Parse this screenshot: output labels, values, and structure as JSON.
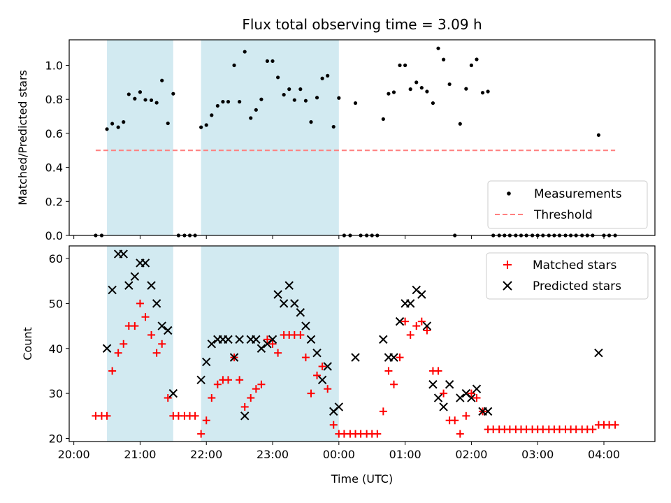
{
  "chart_data": [
    {
      "type": "scatter",
      "title": "Flux total observing time = 3.09 h",
      "xlabel": "",
      "ylabel": "Matched/Predicted stars",
      "xlim_hours": [
        19.93,
        28.77
      ],
      "ylim": [
        0,
        1.15
      ],
      "yticks": [
        0.0,
        0.2,
        0.4,
        0.6,
        0.8,
        1.0
      ],
      "ytick_labels": [
        "0.0",
        "0.2",
        "0.4",
        "0.6",
        "0.8",
        "1.0"
      ],
      "shaded_intervals_hours": [
        [
          20.5,
          21.5
        ],
        [
          21.92,
          24.0
        ]
      ],
      "shade_color": "#add8e6",
      "legend_position": "lower-right",
      "series": [
        {
          "name": "Measurements",
          "marker": "dot",
          "color": "#000000",
          "x_hours": [
            20.33,
            20.42,
            20.5,
            20.58,
            20.67,
            20.75,
            20.83,
            20.92,
            21.0,
            21.08,
            21.17,
            21.25,
            21.33,
            21.42,
            21.5,
            21.58,
            21.67,
            21.75,
            21.83,
            21.92,
            22.0,
            22.08,
            22.17,
            22.25,
            22.33,
            22.42,
            22.5,
            22.58,
            22.67,
            22.75,
            22.83,
            22.92,
            23.0,
            23.08,
            23.17,
            23.25,
            23.33,
            23.42,
            23.5,
            23.58,
            23.67,
            23.75,
            23.83,
            23.92,
            24.0,
            24.08,
            24.17,
            24.25,
            24.33,
            24.42,
            24.5,
            24.58,
            24.67,
            24.75,
            24.83,
            24.92,
            25.0,
            25.08,
            25.17,
            25.25,
            25.33,
            25.42,
            25.5,
            25.58,
            25.67,
            25.75,
            25.83,
            25.92,
            26.0,
            26.08,
            26.17,
            26.25,
            26.33,
            26.42,
            26.5,
            26.58,
            26.67,
            26.75,
            26.83,
            26.92,
            27.0,
            27.08,
            27.17,
            27.25,
            27.33,
            27.42,
            27.5,
            27.58,
            27.67,
            27.75,
            27.83,
            27.92,
            28.0,
            28.08,
            28.17
          ],
          "y": [
            0.0,
            0.0,
            0.625,
            0.657,
            0.636,
            0.667,
            0.83,
            0.804,
            0.843,
            0.797,
            0.795,
            0.78,
            0.911,
            0.659,
            0.833,
            0.0,
            0.0,
            0.0,
            0.0,
            0.636,
            0.649,
            0.707,
            0.762,
            0.786,
            0.786,
            1.0,
            0.786,
            1.08,
            0.69,
            0.738,
            0.8,
            1.025,
            1.025,
            0.929,
            0.827,
            0.86,
            0.796,
            0.86,
            0.792,
            0.667,
            0.81,
            0.923,
            0.939,
            0.639,
            0.808,
            0.0,
            0.0,
            0.778,
            0.0,
            0.0,
            0.0,
            0.0,
            0.684,
            0.833,
            0.842,
            1.0,
            1.0,
            0.86,
            0.9,
            0.868,
            0.846,
            0.778,
            1.1,
            1.034,
            0.889,
            0.0,
            0.656,
            0.862,
            1.0,
            1.035,
            0.839,
            0.846,
            0.0,
            0.0,
            0.0,
            0.0,
            0.0,
            0.0,
            0.0,
            0.0,
            0.0,
            0.0,
            0.0,
            0.0,
            0.0,
            0.0,
            0.0,
            0.0,
            0.0,
            0.0,
            0.0,
            0.59,
            0.0,
            0.0,
            0.0
          ]
        },
        {
          "name": "Threshold",
          "marker": "dashed-line",
          "color": "#ff7f7f",
          "x_hours": [
            20.33,
            28.17
          ],
          "y": [
            0.5,
            0.5
          ]
        }
      ]
    },
    {
      "type": "scatter",
      "title": "",
      "xlabel": "Time (UTC)",
      "ylabel": "Count",
      "xlim_hours": [
        19.93,
        28.77
      ],
      "ylim": [
        19.3,
        62.8
      ],
      "yticks": [
        20,
        30,
        40,
        50,
        60
      ],
      "ytick_labels": [
        "20",
        "30",
        "40",
        "50",
        "60"
      ],
      "xticks_hours": [
        20,
        21,
        22,
        23,
        24,
        25,
        26,
        27,
        28
      ],
      "xtick_labels": [
        "20:00",
        "21:00",
        "22:00",
        "23:00",
        "00:00",
        "01:00",
        "02:00",
        "03:00",
        "04:00"
      ],
      "shaded_intervals_hours": [
        [
          20.5,
          21.5
        ],
        [
          21.92,
          24.0
        ]
      ],
      "shade_color": "#add8e6",
      "legend_position": "top-right",
      "series": [
        {
          "name": "Matched stars",
          "marker": "plus",
          "color": "#ff0000",
          "x_hours": [
            20.33,
            20.42,
            20.5,
            20.58,
            20.67,
            20.75,
            20.83,
            20.92,
            21.0,
            21.08,
            21.17,
            21.25,
            21.33,
            21.42,
            21.5,
            21.58,
            21.67,
            21.75,
            21.83,
            21.92,
            22.0,
            22.08,
            22.17,
            22.25,
            22.33,
            22.42,
            22.5,
            22.58,
            22.67,
            22.75,
            22.83,
            22.92,
            23.0,
            23.08,
            23.17,
            23.25,
            23.33,
            23.42,
            23.5,
            23.58,
            23.67,
            23.75,
            23.83,
            23.92,
            24.0,
            24.08,
            24.17,
            24.25,
            24.33,
            24.42,
            24.5,
            24.58,
            24.67,
            24.75,
            24.83,
            24.92,
            25.0,
            25.08,
            25.17,
            25.25,
            25.33,
            25.42,
            25.5,
            25.58,
            25.67,
            25.75,
            25.83,
            25.92,
            26.0,
            26.08,
            26.17,
            26.25,
            26.33,
            26.42,
            26.5,
            26.58,
            26.67,
            26.75,
            26.83,
            26.92,
            27.0,
            27.08,
            27.17,
            27.25,
            27.33,
            27.42,
            27.5,
            27.58,
            27.67,
            27.75,
            27.83,
            27.92,
            28.0,
            28.08,
            28.17
          ],
          "y": [
            25,
            25,
            25,
            35,
            39,
            41,
            45,
            45,
            50,
            47,
            43,
            39,
            41,
            29,
            25,
            25,
            25,
            25,
            25,
            21,
            24,
            29,
            32,
            33,
            33,
            38,
            33,
            27,
            29,
            31,
            32,
            42,
            41,
            39,
            43,
            43,
            43,
            43,
            38,
            30,
            34,
            36,
            31,
            23,
            21,
            21,
            21,
            21,
            21,
            21,
            21,
            21,
            26,
            35,
            32,
            38,
            46,
            43,
            45,
            46,
            44,
            35,
            35,
            30,
            24,
            24,
            21,
            25,
            30,
            29,
            26,
            22,
            22,
            22,
            22,
            22,
            22,
            22,
            22,
            22,
            22,
            22,
            22,
            22,
            22,
            22,
            22,
            22,
            22,
            22,
            22,
            23,
            23,
            23,
            23
          ]
        },
        {
          "name": "Predicted stars",
          "marker": "x",
          "color": "#000000",
          "x_hours": [
            20.5,
            20.58,
            20.67,
            20.75,
            20.83,
            20.92,
            21.0,
            21.08,
            21.17,
            21.25,
            21.33,
            21.42,
            21.5,
            21.92,
            22.0,
            22.08,
            22.17,
            22.25,
            22.33,
            22.42,
            22.5,
            22.58,
            22.67,
            22.75,
            22.83,
            22.92,
            23.0,
            23.08,
            23.17,
            23.25,
            23.33,
            23.42,
            23.5,
            23.58,
            23.67,
            23.75,
            23.83,
            23.92,
            24.0,
            24.25,
            24.67,
            24.75,
            24.83,
            24.92,
            25.0,
            25.08,
            25.17,
            25.25,
            25.33,
            25.42,
            25.5,
            25.58,
            25.67,
            25.83,
            25.92,
            26.0,
            26.08,
            26.17,
            26.25,
            27.92
          ],
          "y": [
            40,
            53,
            61,
            61,
            54,
            56,
            59,
            59,
            54,
            50,
            45,
            44,
            30,
            33,
            37,
            41,
            42,
            42,
            42,
            38,
            42,
            25,
            42,
            42,
            40,
            41,
            42,
            52,
            50,
            54,
            50,
            48,
            45,
            42,
            39,
            33,
            36,
            26,
            27,
            38,
            42,
            38,
            38,
            46,
            50,
            50,
            53,
            52,
            45,
            32,
            29,
            27,
            32,
            29,
            30,
            29,
            31,
            26,
            26,
            39
          ]
        }
      ]
    }
  ]
}
